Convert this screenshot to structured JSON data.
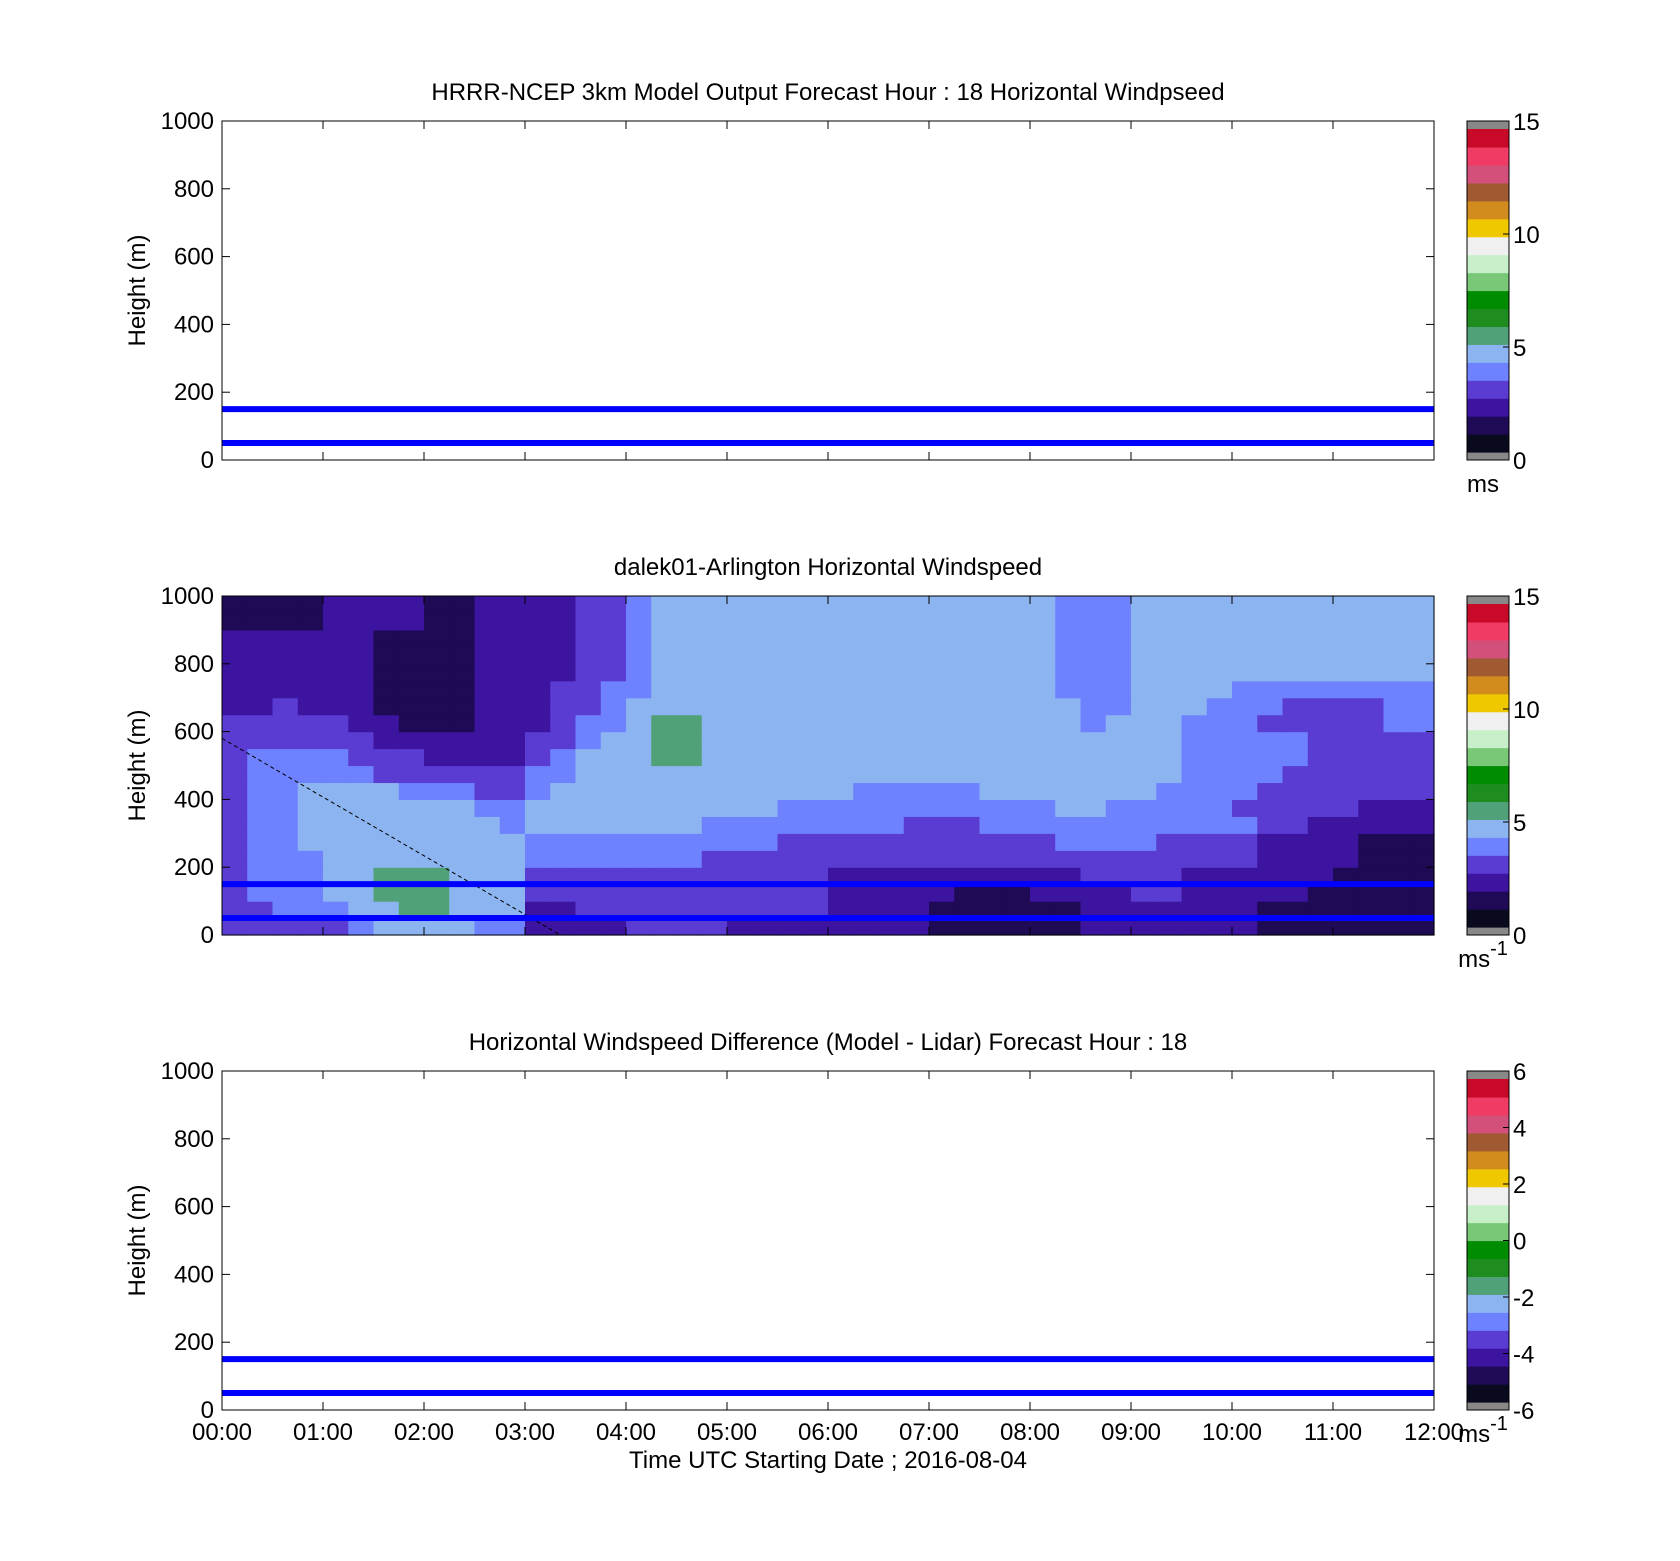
{
  "figure": {
    "background": "#ffffff",
    "line_color": "#0000ff"
  },
  "colormaps": {
    "speed": [
      "#0a0a1e",
      "#1e0a55",
      "#3c14a0",
      "#5a3cd2",
      "#6e82ff",
      "#8cb4f0",
      "#50a078",
      "#1e8c1e",
      "#008c00",
      "#78c878",
      "#c8f0c8",
      "#f0f0f0",
      "#f0c800",
      "#d28c1e",
      "#a05a32",
      "#d2507a",
      "#f03c64",
      "#c80a28"
    ],
    "diff": [
      "#0a0a1e",
      "#1e0a55",
      "#3c14a0",
      "#5a3cd2",
      "#6e82ff",
      "#8cb4f0",
      "#50a078",
      "#1e8c1e",
      "#008c00",
      "#78c878",
      "#c8f0c8",
      "#f0f0f0",
      "#f0c800",
      "#d28c1e",
      "#a05a32",
      "#d2507a",
      "#f03c64",
      "#c80a28"
    ],
    "endcap": "#888888"
  },
  "panels": [
    {
      "id": "model",
      "title": "HRRR-NCEP 3km Model Output   Forecast Hour : 18 Horizontal Windpseed",
      "ylabel": "Height (m)",
      "colorbar": {
        "min": 0,
        "max": 15,
        "ticks": [
          "0",
          "5",
          "10",
          "15"
        ],
        "unit": "ms",
        "unit_sup": "",
        "cmap": "speed"
      },
      "has_data": false
    },
    {
      "id": "lidar",
      "title": "dalek01-Arlington  Horizontal Windspeed",
      "ylabel": "Height (m)",
      "colorbar": {
        "min": 0,
        "max": 15,
        "ticks": [
          "0",
          "5",
          "10",
          "15"
        ],
        "unit": "ms",
        "unit_sup": "-1",
        "cmap": "speed"
      },
      "has_data": true
    },
    {
      "id": "difference",
      "title": "Horizontal Windspeed Difference (Model - Lidar) Forecast Hour : 18",
      "ylabel": "Height (m)",
      "colorbar": {
        "min": -6,
        "max": 6,
        "ticks": [
          "-6",
          "-4",
          "-2",
          "0",
          "2",
          "4",
          "6"
        ],
        "unit": "ms",
        "unit_sup": "-1",
        "cmap": "diff"
      },
      "has_data": false
    }
  ],
  "xlabel": "Time UTC  Starting Date ; 2016-08-04",
  "chart_data": {
    "type": "heatmap",
    "x_ticks": [
      "00:00",
      "01:00",
      "02:00",
      "03:00",
      "04:00",
      "05:00",
      "06:00",
      "07:00",
      "08:00",
      "09:00",
      "10:00",
      "11:00",
      "12:00"
    ],
    "y_ticks": [
      "0",
      "200",
      "400",
      "600",
      "800",
      "1000"
    ],
    "xlim": [
      0,
      12
    ],
    "ylim": [
      0,
      1000
    ],
    "reference_lines_m": [
      50,
      150
    ],
    "diagonal_dashed": {
      "x": [
        0,
        3.35
      ],
      "y": [
        580,
        0
      ]
    },
    "lidar_time_hours": [
      0.0,
      0.25,
      0.5,
      0.75,
      1.0,
      1.25,
      1.5,
      1.75,
      2.0,
      2.25,
      2.5,
      2.75,
      3.0,
      3.25,
      3.5,
      3.75,
      4.0,
      4.25,
      4.5,
      4.75,
      5.0,
      5.25,
      5.5,
      5.75,
      6.0,
      6.25,
      6.5,
      6.75,
      7.0,
      7.25,
      7.5,
      7.75,
      8.0,
      8.25,
      8.5,
      8.75,
      9.0,
      9.25,
      9.5,
      9.75,
      10.0,
      10.25,
      10.5,
      10.75,
      11.0,
      11.25,
      11.5,
      11.75
    ],
    "lidar_height_m": [
      0,
      50,
      100,
      150,
      200,
      250,
      300,
      350,
      400,
      450,
      500,
      550,
      600,
      650,
      700,
      750,
      800,
      850,
      900,
      950
    ],
    "lidar_windspeed_ms": [
      [
        3,
        3,
        3,
        3,
        3,
        4,
        5,
        5,
        5,
        5,
        4,
        4,
        1.5,
        1.5,
        2,
        2,
        2.5,
        2.5,
        3,
        3,
        2,
        2,
        2,
        2,
        2,
        2,
        2,
        2,
        1,
        0.5,
        0.5,
        0.5,
        1,
        1,
        1.5,
        1.5,
        1.5,
        2,
        2,
        2,
        1.5,
        1,
        1,
        1,
        0.5,
        0.5,
        0.5,
        0.5
      ],
      [
        3,
        3,
        3.5,
        3.5,
        4,
        5,
        5,
        5.5,
        5.5,
        5,
        4.5,
        4.5,
        2,
        2,
        2.5,
        2.5,
        3,
        3,
        3,
        3,
        2.5,
        2.5,
        2.5,
        2.5,
        2,
        2,
        2,
        2,
        1,
        0.5,
        0.5,
        0.5,
        1,
        1,
        1.5,
        1.5,
        2,
        2,
        2,
        2,
        1.5,
        1,
        1,
        1,
        1,
        1,
        0.5,
        0.5
      ],
      [
        3,
        3.5,
        3.5,
        4,
        4.5,
        5,
        5.5,
        5.5,
        5.5,
        5,
        5,
        4.5,
        2.5,
        2.5,
        3,
        3,
        3,
        3,
        3,
        3,
        2.5,
        2.5,
        2.5,
        2.5,
        2,
        1.5,
        1.5,
        1.5,
        1.5,
        1,
        1,
        1,
        1.5,
        1.5,
        2,
        2,
        2.5,
        2.5,
        2,
        2,
        1.5,
        1.5,
        1.5,
        1,
        1,
        1,
        0.5,
        0.5
      ],
      [
        3,
        3.5,
        4,
        4,
        5,
        5,
        5.5,
        5.5,
        5.5,
        5,
        5,
        5,
        3,
        3,
        3,
        3,
        3,
        3,
        3,
        3,
        3,
        2.5,
        2.5,
        2.5,
        2,
        2,
        2,
        2,
        2,
        1.5,
        1.5,
        1.5,
        2,
        2,
        2.5,
        2.5,
        2.5,
        2.5,
        2,
        2,
        2,
        1.5,
        1.5,
        1.5,
        1,
        1,
        0.5,
        0.5
      ],
      [
        3,
        3.5,
        4,
        4,
        5,
        5,
        5,
        5,
        5,
        5,
        5,
        5,
        4,
        4,
        4,
        4,
        3.5,
        3.5,
        3.5,
        3,
        3,
        3,
        3,
        3,
        2.5,
        2.5,
        2.5,
        2.5,
        2.5,
        2.5,
        2.5,
        3,
        3,
        3,
        3,
        3,
        3,
        3,
        3,
        3,
        2.5,
        2,
        2,
        2,
        1.5,
        1,
        1,
        0.5
      ],
      [
        3,
        3.5,
        4,
        4.5,
        5,
        5,
        5,
        5,
        5,
        5,
        5,
        5,
        4,
        4,
        4,
        4,
        4,
        4,
        4,
        3.5,
        3.5,
        3.5,
        3,
        3,
        3,
        3,
        3,
        3,
        3,
        3,
        3,
        3,
        3,
        3.5,
        3.5,
        3.5,
        3.5,
        3,
        3,
        3,
        3,
        2,
        2,
        1.5,
        1.5,
        1,
        1,
        0.5
      ],
      [
        3,
        3.5,
        4,
        4.5,
        5,
        5,
        5,
        5,
        5,
        4.5,
        4.5,
        4,
        4.5,
        4.5,
        4.5,
        4.5,
        4.5,
        4.5,
        4.5,
        4,
        4,
        4,
        3.5,
        3.5,
        3.5,
        3.5,
        3.5,
        3,
        3,
        3,
        3.5,
        3.5,
        3.5,
        4,
        4,
        4,
        4,
        3.5,
        3.5,
        3.5,
        3.5,
        2.5,
        2.5,
        2,
        2,
        1.5,
        1.5,
        1.5
      ],
      [
        3,
        3.5,
        4,
        4.5,
        5,
        5,
        5,
        5,
        4.5,
        4.5,
        4,
        4,
        4.5,
        5,
        5,
        5,
        5,
        5,
        5,
        4.5,
        4.5,
        4.5,
        4,
        4,
        4,
        4,
        3.5,
        3.5,
        3.5,
        3.5,
        4,
        4,
        4,
        4.5,
        4.5,
        4,
        4,
        4,
        4,
        3.5,
        3,
        3,
        2.5,
        2.5,
        2.5,
        2,
        2,
        2
      ],
      [
        3,
        3.5,
        4,
        4.5,
        5,
        4.5,
        4.5,
        4,
        3.5,
        3.5,
        3,
        3,
        4,
        4.5,
        5,
        5,
        5,
        5,
        5,
        5,
        5,
        5,
        4.5,
        4.5,
        4.5,
        4,
        4,
        4,
        4,
        4,
        4.5,
        4.5,
        4.5,
        4.5,
        4.5,
        4.5,
        4.5,
        4,
        4,
        4,
        3.5,
        3,
        3,
        3,
        2.5,
        2.5,
        2.5,
        2.5
      ],
      [
        3,
        3.5,
        4,
        4,
        4,
        3.5,
        3,
        3,
        2.5,
        2.5,
        2.5,
        2.5,
        3.5,
        4,
        5,
        5,
        5,
        5,
        5,
        5,
        5,
        5,
        5,
        5,
        5,
        4.5,
        4.5,
        4.5,
        4.5,
        4.5,
        4.5,
        5,
        5,
        5,
        4.5,
        4.5,
        4.5,
        4.5,
        4,
        4,
        3.5,
        3.5,
        3,
        3,
        3,
        3,
        3,
        3
      ],
      [
        3,
        3.5,
        3.5,
        3.5,
        3.5,
        3,
        2.5,
        2.5,
        2,
        2,
        2,
        2,
        3,
        3.5,
        4.5,
        5,
        5,
        5.5,
        5.5,
        5,
        5,
        5,
        5,
        5,
        5,
        5,
        5,
        5,
        4.5,
        4.5,
        4.5,
        5,
        5,
        5,
        4.5,
        4.5,
        4.5,
        4.5,
        4,
        3.5,
        3.5,
        3.5,
        3.5,
        3,
        3,
        3,
        3,
        3
      ],
      [
        3,
        3,
        3,
        3,
        3,
        2.5,
        2,
        2,
        1.5,
        1.5,
        1.5,
        1.5,
        2.5,
        3,
        4,
        4.5,
        5,
        5.5,
        5.5,
        5,
        5,
        5,
        5,
        5,
        5,
        5,
        5,
        5,
        5,
        4.5,
        4.5,
        4.5,
        4.5,
        4.5,
        4.5,
        4.5,
        4.5,
        4.5,
        4,
        3.5,
        3.5,
        3.5,
        3.5,
        3,
        3,
        3,
        3,
        3
      ],
      [
        2.5,
        2.5,
        2.5,
        2.5,
        2.5,
        2,
        1.5,
        1,
        1,
        1,
        1.5,
        1.5,
        2,
        2.5,
        3.5,
        4,
        5,
        5.5,
        5.5,
        5,
        5,
        5,
        5,
        5,
        5,
        5,
        5,
        5,
        5,
        5,
        4.5,
        4.5,
        4.5,
        4.5,
        4,
        4.5,
        4.5,
        4.5,
        4,
        3.5,
        3.5,
        3,
        3,
        3,
        3,
        3,
        3.5,
        3.5
      ],
      [
        2,
        2,
        2.5,
        2,
        2,
        1.5,
        1,
        1,
        1,
        1,
        1.5,
        1.5,
        2,
        2.5,
        3,
        3.5,
        4.5,
        5,
        5,
        5,
        5,
        5,
        5,
        5,
        5,
        5,
        5,
        5,
        5,
        5,
        4.5,
        4.5,
        4.5,
        4.5,
        4,
        4,
        4.5,
        4.5,
        4.5,
        4,
        3.5,
        3.5,
        3,
        3,
        3,
        3,
        3.5,
        3.5
      ],
      [
        2,
        2,
        2,
        2,
        2,
        1.5,
        1,
        1,
        1,
        1,
        1.5,
        1.5,
        2,
        2.5,
        3,
        3.5,
        4,
        4.5,
        4.5,
        4.5,
        4.5,
        5,
        5,
        5,
        5,
        5,
        5,
        5,
        5,
        5,
        4.5,
        4.5,
        4.5,
        4,
        4,
        4,
        4.5,
        4.5,
        4.5,
        4.5,
        4,
        4,
        3.5,
        3.5,
        3.5,
        3.5,
        4,
        4
      ],
      [
        2,
        2,
        2,
        2,
        2,
        1.5,
        1,
        1,
        1,
        1,
        1.5,
        1.5,
        2,
        2,
        2.5,
        3,
        4,
        4.5,
        4.5,
        4.5,
        4.5,
        5,
        5,
        5,
        5,
        5,
        5,
        5,
        5,
        4.5,
        4.5,
        4.5,
        4.5,
        4,
        4,
        4,
        4.5,
        4.5,
        4.5,
        4.5,
        4.5,
        4.5,
        4.5,
        4.5,
        4.5,
        4.5,
        4.5,
        4.5
      ],
      [
        1.5,
        1.5,
        1.5,
        1.5,
        1.5,
        1.5,
        1,
        1,
        1,
        1,
        1.5,
        1.5,
        2,
        2,
        2.5,
        3,
        4,
        4.5,
        4.5,
        4.5,
        4.5,
        5,
        5,
        5,
        5,
        5,
        5,
        5,
        5,
        4.5,
        4.5,
        4.5,
        4.5,
        4,
        4,
        4,
        4.5,
        4.5,
        4.5,
        4.5,
        5,
        5,
        5,
        5,
        5,
        5,
        5,
        5
      ],
      [
        1.5,
        1.5,
        1.5,
        1.5,
        1.5,
        1.5,
        1,
        1,
        1,
        1,
        1.5,
        1.5,
        2,
        2,
        2.5,
        3,
        4,
        4.5,
        4.5,
        4.5,
        4.5,
        5,
        5,
        5,
        5,
        5,
        5,
        5,
        5,
        4.5,
        4.5,
        4.5,
        4.5,
        4,
        4,
        4,
        4.5,
        4.5,
        4.5,
        4.5,
        5,
        5,
        5,
        5,
        5,
        5,
        5,
        5
      ],
      [
        1,
        1,
        1,
        1,
        1.5,
        1.5,
        1.5,
        1.5,
        1,
        1,
        1.5,
        1.5,
        2,
        2,
        2.5,
        3,
        4,
        4.5,
        4.5,
        4.5,
        4.5,
        5,
        5,
        5,
        5,
        5,
        5,
        5,
        5,
        4.5,
        4.5,
        4.5,
        4.5,
        4,
        4,
        4,
        4.5,
        4.5,
        4.5,
        4.5,
        5,
        5,
        5,
        5,
        5,
        5,
        5,
        5
      ],
      [
        1,
        1,
        1,
        1,
        1.5,
        1.5,
        1.5,
        1.5,
        1,
        1,
        1.5,
        1.5,
        2,
        2,
        2.5,
        3,
        4,
        4.5,
        4.5,
        4.5,
        4.5,
        5,
        5,
        5,
        5,
        5,
        5,
        5,
        5,
        4.5,
        4.5,
        4.5,
        4.5,
        4,
        4,
        4,
        4.5,
        4.5,
        4.5,
        4.5,
        5,
        5,
        5,
        5,
        5,
        5,
        5,
        5
      ]
    ]
  }
}
